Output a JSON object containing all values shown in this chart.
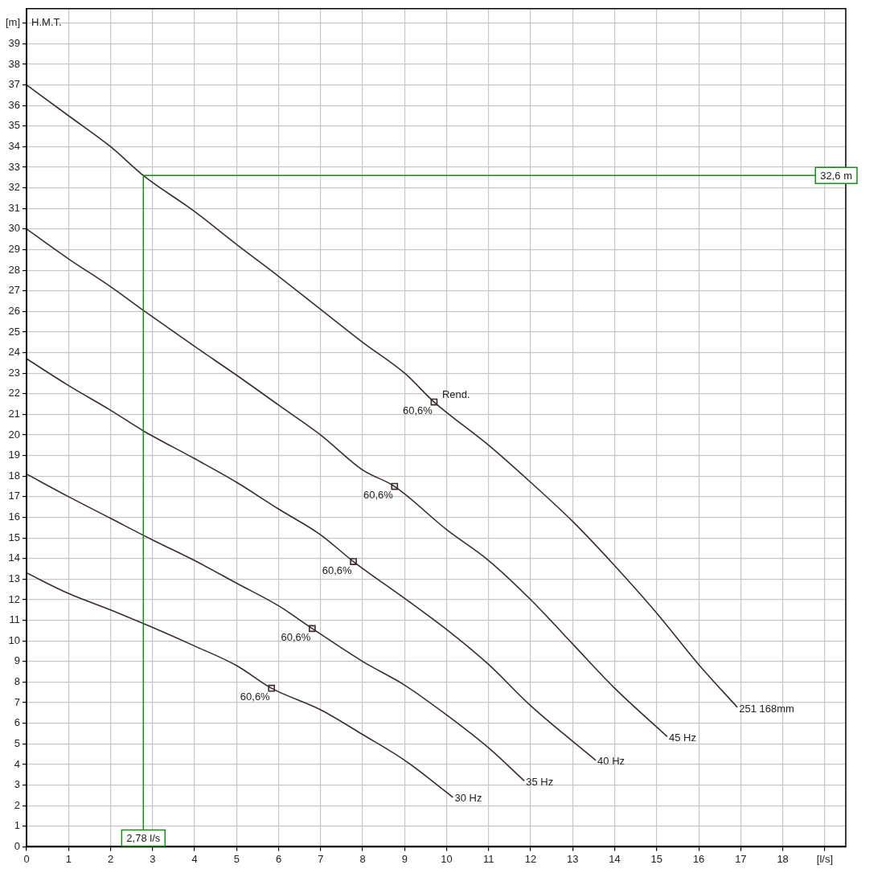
{
  "chart_data": {
    "type": "line",
    "ylabel": "H.M.T.",
    "xlim": [
      0,
      19.5
    ],
    "ylim": [
      0,
      40.7
    ],
    "xticks": [
      0,
      1,
      2,
      3,
      4,
      5,
      6,
      7,
      8,
      9,
      10,
      11,
      12,
      13,
      14,
      15,
      16,
      17,
      18,
      {
        "value": 19,
        "label": "[l/s]"
      }
    ],
    "yticks": [
      0,
      1,
      2,
      3,
      4,
      5,
      6,
      7,
      8,
      9,
      10,
      11,
      12,
      13,
      14,
      15,
      16,
      17,
      18,
      19,
      20,
      21,
      22,
      23,
      24,
      25,
      26,
      27,
      28,
      29,
      30,
      31,
      32,
      33,
      34,
      35,
      36,
      37,
      38,
      39,
      {
        "value": 40,
        "label": "[m]"
      }
    ],
    "grid": true,
    "legend": false,
    "line_style": "solid",
    "marker": "none",
    "series": [
      {
        "name": "251 168mm",
        "color": "#3a2c2c",
        "x": [
          0,
          1,
          2,
          2.78,
          4,
          5,
          6,
          7,
          8,
          9,
          9.7,
          11,
          12,
          13,
          14,
          15,
          16,
          16.92
        ],
        "values": [
          37,
          35.5,
          34,
          32.6,
          30.85,
          29.25,
          27.7,
          26.1,
          24.5,
          23,
          21.6,
          19.5,
          17.7,
          15.8,
          13.65,
          11.35,
          8.85,
          6.77
        ]
      },
      {
        "name": "45 Hz",
        "color": "#3a2c2c",
        "x": [
          0,
          1,
          2,
          2.78,
          4,
          5,
          6,
          7,
          8,
          8.76,
          10,
          11,
          12,
          13,
          14,
          15.25
        ],
        "values": [
          30,
          28.55,
          27.2,
          26.05,
          24.3,
          22.9,
          21.45,
          20,
          18.3,
          17.5,
          15.4,
          13.9,
          12,
          9.85,
          7.7,
          5.35
        ]
      },
      {
        "name": "40 Hz",
        "color": "#3a2c2c",
        "x": [
          0,
          1,
          2,
          2.78,
          4,
          5,
          6,
          7,
          7.78,
          9,
          10,
          11,
          12,
          13.55
        ],
        "values": [
          23.7,
          22.4,
          21.2,
          20.2,
          18.85,
          17.7,
          16.4,
          15.15,
          13.85,
          12.06,
          10.55,
          8.85,
          6.85,
          4.2
        ]
      },
      {
        "name": "35 Hz",
        "color": "#3a2c2c",
        "x": [
          0,
          1,
          2,
          3,
          4,
          5,
          6,
          6.8,
          8,
          9,
          10,
          11,
          11.85
        ],
        "values": [
          18.1,
          17,
          15.95,
          14.9,
          13.9,
          12.8,
          11.7,
          10.6,
          9,
          7.85,
          6.4,
          4.8,
          3.2
        ]
      },
      {
        "name": "30 Hz",
        "color": "#3a2c2c",
        "x": [
          0,
          1,
          2,
          3,
          4,
          5,
          5.83,
          7,
          8,
          9,
          10.15
        ],
        "values": [
          13.3,
          12.3,
          11.5,
          10.65,
          9.75,
          8.8,
          7.7,
          6.65,
          5.45,
          4.2,
          2.4
        ]
      },
      {
        "type": "scatter",
        "marker": "square",
        "color": "#3a2c2c",
        "x": [
          9.7,
          8.76,
          7.78,
          6.8,
          5.83
        ],
        "values": [
          21.6,
          17.5,
          13.85,
          10.6,
          7.7
        ]
      }
    ],
    "ref_lines": [
      {
        "axis": "x",
        "value": 2.78,
        "label": "2,78 l/s",
        "color": "#1a8a1a"
      },
      {
        "axis": "y",
        "value": 32.6,
        "label": "32,6 m",
        "color": "#1a8a1a"
      }
    ],
    "annotations": [
      {
        "text": "60,6%",
        "x": 9.7,
        "y": 21.6
      },
      {
        "text": "Rend.",
        "x": 9.7,
        "y": 21.6
      },
      {
        "text": "60,6%",
        "x": 8.76,
        "y": 17.5
      },
      {
        "text": "60,6%",
        "x": 7.78,
        "y": 13.85
      },
      {
        "text": "60,6%",
        "x": 6.8,
        "y": 10.6
      },
      {
        "text": "60,6%",
        "x": 5.83,
        "y": 7.7
      }
    ]
  }
}
